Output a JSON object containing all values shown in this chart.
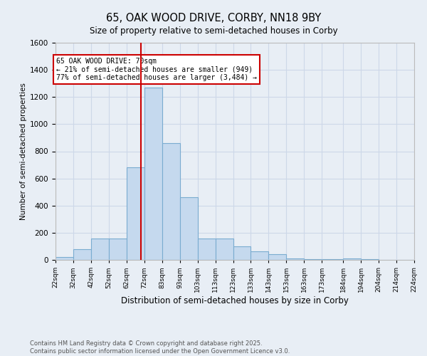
{
  "title": "65, OAK WOOD DRIVE, CORBY, NN18 9BY",
  "subtitle": "Size of property relative to semi-detached houses in Corby",
  "xlabel": "Distribution of semi-detached houses by size in Corby",
  "ylabel": "Number of semi-detached properties",
  "footnote1": "Contains HM Land Registry data © Crown copyright and database right 2025.",
  "footnote2": "Contains public sector information licensed under the Open Government Licence v3.0.",
  "property_line_x": 70,
  "annotation_text": "65 OAK WOOD DRIVE: 70sqm\n← 21% of semi-detached houses are smaller (949)\n77% of semi-detached houses are larger (3,484) →",
  "bins_left": [
    22,
    32,
    42,
    52,
    62,
    72,
    82,
    92,
    102,
    112,
    122,
    132,
    142,
    152,
    162,
    172,
    184,
    194,
    204,
    214
  ],
  "bar_heights": [
    20,
    80,
    155,
    155,
    680,
    1270,
    860,
    460,
    160,
    160,
    100,
    65,
    40,
    10,
    5,
    5,
    10,
    5,
    0,
    0
  ],
  "bar_color": "#c5d9ee",
  "bar_edge_color": "#7aacd0",
  "line_color": "#cc0000",
  "ylim": [
    0,
    1600
  ],
  "yticks": [
    0,
    200,
    400,
    600,
    800,
    1000,
    1200,
    1400,
    1600
  ],
  "xtick_labels": [
    "22sqm",
    "32sqm",
    "42sqm",
    "52sqm",
    "62sqm",
    "72sqm",
    "83sqm",
    "93sqm",
    "103sqm",
    "113sqm",
    "123sqm",
    "133sqm",
    "143sqm",
    "153sqm",
    "163sqm",
    "173sqm",
    "184sqm",
    "194sqm",
    "204sqm",
    "214sqm",
    "224sqm"
  ],
  "grid_color": "#cdd8e8",
  "bg_color": "#e8eef5"
}
